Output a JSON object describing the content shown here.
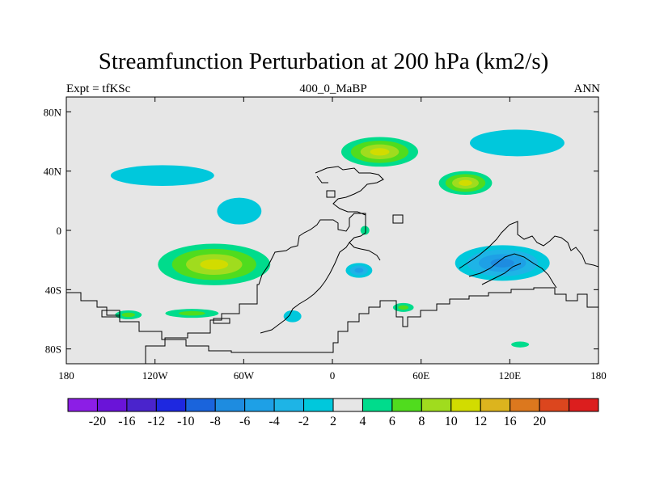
{
  "header": {
    "title": "Streamfunction Perturbation at 200 hPa (km2/s)",
    "left_label": "Expt = tfKSc",
    "center_label": "400_0_MaBP",
    "right_label": "ANN"
  },
  "chart_data": {
    "type": "heatmap",
    "projection": "cylindrical-equidistant",
    "variable": "streamfunction perturbation",
    "units": "km2/s",
    "level": "200 hPa",
    "xlim": [
      -180,
      180
    ],
    "ylim": [
      -90,
      90
    ],
    "x_ticks": [
      {
        "value": -180,
        "label": "180"
      },
      {
        "value": -120,
        "label": "120W"
      },
      {
        "value": -60,
        "label": "60W"
      },
      {
        "value": 0,
        "label": "0"
      },
      {
        "value": 60,
        "label": "60E"
      },
      {
        "value": 120,
        "label": "120E"
      },
      {
        "value": 180,
        "label": "180"
      }
    ],
    "y_ticks": [
      {
        "value": 80,
        "label": "80N"
      },
      {
        "value": 40,
        "label": "40N"
      },
      {
        "value": 0,
        "label": "0"
      },
      {
        "value": -40,
        "label": "40S"
      },
      {
        "value": -80,
        "label": "80S"
      }
    ],
    "colorbar": {
      "orientation": "horizontal",
      "levels": [
        -24,
        -20,
        -16,
        -12,
        -10,
        -8,
        -6,
        -4,
        -2,
        2,
        4,
        6,
        8,
        10,
        12,
        16,
        20
      ],
      "labels": [
        "-20",
        "-16",
        "-12",
        "-10",
        "-8",
        "-6",
        "-4",
        "-2",
        "2",
        "4",
        "6",
        "8",
        "10",
        "12",
        "16",
        "20"
      ],
      "colors": [
        "#8c1ee6",
        "#6a14d8",
        "#4a24cc",
        "#1e28e0",
        "#1a64dc",
        "#1e8ce0",
        "#1ea0e6",
        "#1eb4e6",
        "#00c8dc",
        "#e6e6e6",
        "#00dc8c",
        "#50dc1e",
        "#a0dc1e",
        "#d2dc00",
        "#dcb41e",
        "#dc781e",
        "#dc461e",
        "#dc1e1e"
      ]
    },
    "anomalies": [
      {
        "lon": -80,
        "lat": -23,
        "rx": 38,
        "ry": 14,
        "peak": 8
      },
      {
        "lon": 32,
        "lat": 53,
        "rx": 26,
        "ry": 10,
        "peak": 8
      },
      {
        "lon": 90,
        "lat": 32,
        "rx": 18,
        "ry": 8,
        "peak": 8
      },
      {
        "lon": 115,
        "lat": -22,
        "rx": 32,
        "ry": 12,
        "peak": -8
      },
      {
        "lon": 18,
        "lat": -27,
        "rx": 9,
        "ry": 5,
        "peak": -6
      },
      {
        "lon": -138,
        "lat": -57,
        "rx": 9,
        "ry": 3,
        "peak": 4
      },
      {
        "lon": -95,
        "lat": -56,
        "rx": 18,
        "ry": 3,
        "peak": 4
      },
      {
        "lon": 48,
        "lat": -52,
        "rx": 7,
        "ry": 3,
        "peak": 4
      },
      {
        "lon": 127,
        "lat": -77,
        "rx": 6,
        "ry": 2,
        "peak": 3
      },
      {
        "lon": 22,
        "lat": 0,
        "rx": 3,
        "ry": 3,
        "peak": 3
      },
      {
        "lon": -27,
        "lat": -58,
        "rx": 6,
        "ry": 4,
        "peak": -3
      },
      {
        "lon": -115,
        "lat": 37,
        "rx": 35,
        "ry": 7,
        "peak": -3
      },
      {
        "lon": 125,
        "lat": 59,
        "rx": 32,
        "ry": 9,
        "peak": -3
      },
      {
        "lon": -63,
        "lat": 13,
        "rx": 15,
        "ry": 9,
        "peak": -3
      }
    ]
  }
}
